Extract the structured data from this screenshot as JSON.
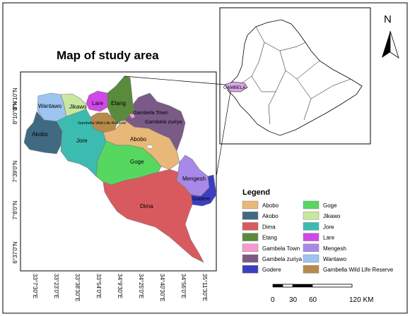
{
  "map": {
    "title": "Map of study area",
    "inset_label": "GAMBELA",
    "north_label": "N",
    "legend_title": "Legend",
    "lat_ticks": [
      "8°4'10\"N",
      "8°10\"0\"N",
      "7°39'0\"N",
      "7°8'0\"N",
      "6°37'0\"N"
    ],
    "lon_ticks": [
      "33°7'30\"E",
      "33°23'0\"E",
      "33°38'30\"E",
      "33°54'0\"E",
      "34°9'30\"E",
      "34°25'0\"E",
      "34°40'30\"E",
      "34°56'0\"E",
      "35°11'30\"E"
    ],
    "scale_labels": [
      "0",
      "30",
      "60",
      "120 KM"
    ]
  },
  "regions": [
    {
      "id": "abobo",
      "name": "Abobo",
      "color": "#e8b878"
    },
    {
      "id": "akobo",
      "name": "Akobo",
      "color": "#3f6a82"
    },
    {
      "id": "dima",
      "name": "Dima",
      "color": "#d95a5e"
    },
    {
      "id": "etang",
      "name": "Etang",
      "color": "#5a8a3c"
    },
    {
      "id": "gambela-town",
      "name": "Gambela  Town",
      "color": "#f59ad0"
    },
    {
      "id": "gambela-zuriya",
      "name": "Gambela zuriya",
      "color": "#7a5a86"
    },
    {
      "id": "godere",
      "name": "Godere",
      "color": "#3a3ec0"
    },
    {
      "id": "goge",
      "name": "Goge",
      "color": "#56d860"
    },
    {
      "id": "jikawo",
      "name": "Jikawo",
      "color": "#c8e8a0"
    },
    {
      "id": "jore",
      "name": "Jore",
      "color": "#3cbcb0"
    },
    {
      "id": "lare",
      "name": "Lare",
      "color": "#d048e8"
    },
    {
      "id": "mengesh",
      "name": "Mengesh",
      "color": "#a888e8"
    },
    {
      "id": "wantawo",
      "name": "Wantawo",
      "color": "#9ec4f0"
    },
    {
      "id": "gambella-wildlife",
      "name": "Gambella Wild Life Reserve",
      "color": "#b88a4a"
    }
  ],
  "legend": {
    "left": [
      {
        "name": "Abobo",
        "color": "#e8b878"
      },
      {
        "name": "Akobo",
        "color": "#3f6a82"
      },
      {
        "name": "Dima",
        "color": "#d95a5e"
      },
      {
        "name": "Etang",
        "color": "#5a8a3c"
      },
      {
        "name": "Gambela  Town",
        "color": "#f59ad0"
      },
      {
        "name": "Gambela zuriya",
        "color": "#7a5a86"
      },
      {
        "name": "Godere",
        "color": "#3a3ec0"
      }
    ],
    "right": [
      {
        "name": "Goge",
        "color": "#56d860"
      },
      {
        "name": "Jikawo",
        "color": "#c8e8a0"
      },
      {
        "name": "Jore",
        "color": "#3cbcb0"
      },
      {
        "name": "Lare",
        "color": "#d048e8"
      },
      {
        "name": "Mengesh",
        "color": "#a888e8"
      },
      {
        "name": "Wantawo",
        "color": "#9ec4f0"
      },
      {
        "name": "Gambella Wild Life Reserve",
        "color": "#b88a4a"
      }
    ]
  }
}
